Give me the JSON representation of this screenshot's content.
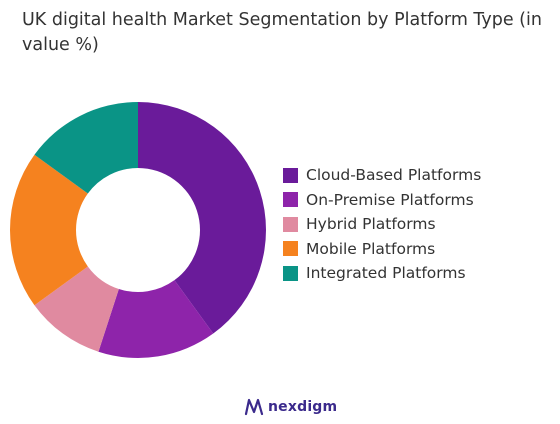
{
  "title": "UK digital health Market Segmentation by Platform Type (in value %)",
  "chart_data": {
    "type": "pie",
    "donut": true,
    "title": "UK digital health Market Segmentation by Platform Type (in value %)",
    "categories": [
      "Cloud-Based Platforms",
      "On-Premise Platforms",
      "Hybrid Platforms",
      "Mobile Platforms",
      "Integrated Platforms"
    ],
    "values": [
      40,
      15,
      10,
      20,
      15
    ],
    "colors": [
      "#6a1b9a",
      "#8e24aa",
      "#e08aa0",
      "#f5821f",
      "#0a9486"
    ],
    "legend_position": "right"
  },
  "brand": {
    "name": "nexdigm",
    "logo_icon": "nexdigm-logo-icon"
  }
}
